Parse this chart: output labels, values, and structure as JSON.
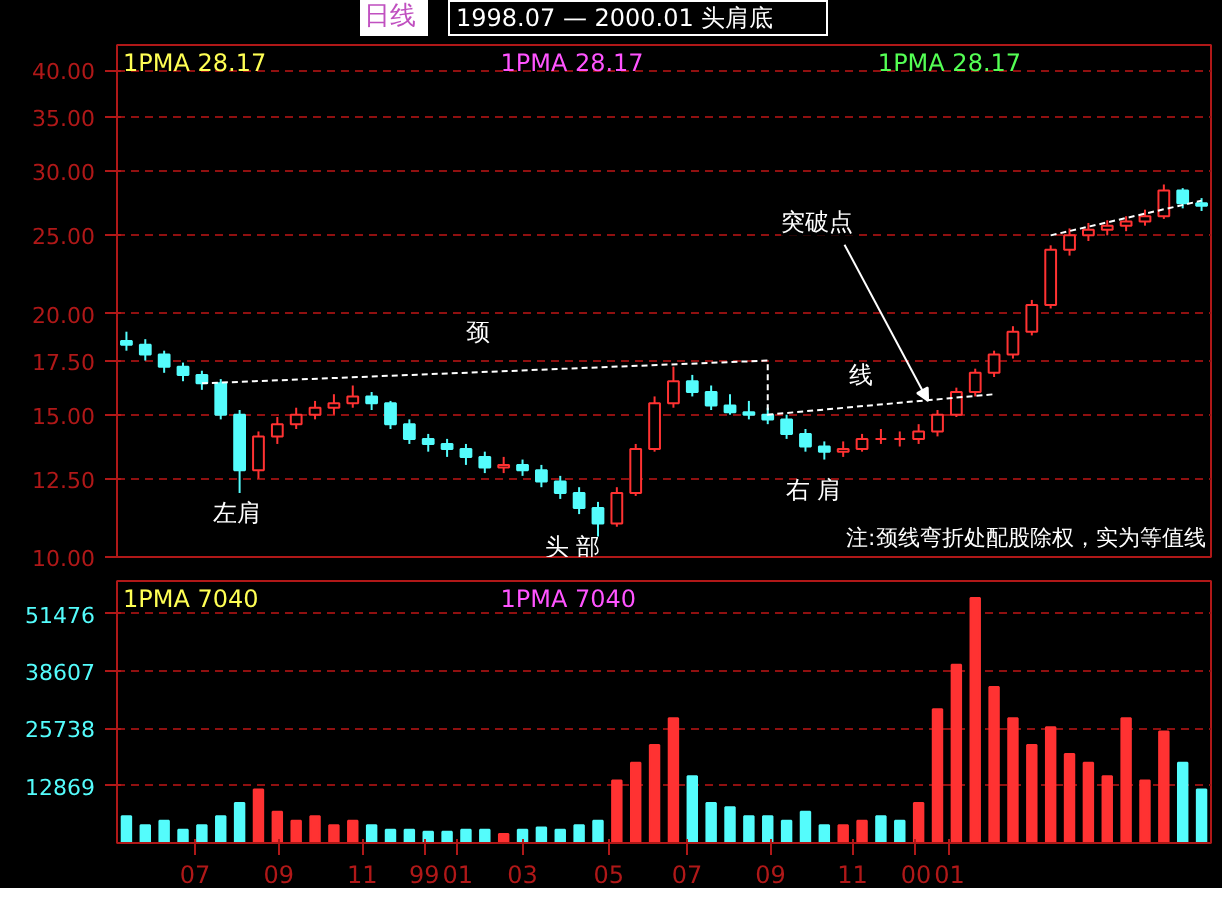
{
  "chart_data": [
    {
      "type": "candlestick",
      "title": "1998.07 — 2000.01 头肩底",
      "subtitle": "日线",
      "log": "y",
      "tick_labels": "y",
      "grid": "y",
      "x": [
        "1998-05-11",
        "1998-05-25",
        "1998-06-08",
        "1998-06-22",
        "1998-07-06",
        "1998-07-20",
        "1998-08-03",
        "1998-08-17",
        "1998-08-31",
        "1998-09-14",
        "1998-09-28",
        "1998-10-12",
        "1998-10-26",
        "1998-11-09",
        "1998-11-23",
        "1998-12-07",
        "1998-12-21",
        "1999-01-04",
        "1999-01-18",
        "1999-02-01",
        "1999-02-15",
        "1999-03-01",
        "1999-03-15",
        "1999-03-29",
        "1999-04-12",
        "1999-04-26",
        "1999-05-10",
        "1999-05-24",
        "1999-06-07",
        "1999-06-21",
        "1999-07-05",
        "1999-07-19",
        "1999-08-02",
        "1999-08-16",
        "1999-08-30",
        "1999-09-13",
        "1999-09-27",
        "1999-10-11",
        "1999-10-25",
        "1999-11-08",
        "1999-11-22",
        "1999-12-06",
        "1999-12-20",
        "2000-01-03",
        "2000-01-17",
        "2000-01-31",
        "2000-02-14",
        "2000-02-28",
        "2000-03-13",
        "2000-03-27",
        "2000-04-10",
        "2000-04-24",
        "2000-05-08",
        "2000-05-22",
        "2000-06-05",
        "2000-06-19",
        "2000-07-03",
        "2000-07-17"
      ],
      "ohlc": [
        [
          18.5,
          19.0,
          18.0,
          18.3
        ],
        [
          18.3,
          18.6,
          17.5,
          17.8
        ],
        [
          17.8,
          18.0,
          16.9,
          17.2
        ],
        [
          17.2,
          17.4,
          16.5,
          16.8
        ],
        [
          16.8,
          17.0,
          16.1,
          16.4
        ],
        [
          16.4,
          16.6,
          14.8,
          15.0
        ],
        [
          15.0,
          15.2,
          12.0,
          12.8
        ],
        [
          12.8,
          14.3,
          12.5,
          14.1
        ],
        [
          14.1,
          14.9,
          13.8,
          14.6
        ],
        [
          14.6,
          15.3,
          14.4,
          15.0
        ],
        [
          15.0,
          15.6,
          14.8,
          15.3
        ],
        [
          15.3,
          15.9,
          15.0,
          15.5
        ],
        [
          15.5,
          16.3,
          15.3,
          15.8
        ],
        [
          15.8,
          16.0,
          15.2,
          15.5
        ],
        [
          15.5,
          15.6,
          14.4,
          14.6
        ],
        [
          14.6,
          14.8,
          13.8,
          14.0
        ],
        [
          14.0,
          14.2,
          13.5,
          13.8
        ],
        [
          13.8,
          14.0,
          13.3,
          13.6
        ],
        [
          13.6,
          13.8,
          13.0,
          13.3
        ],
        [
          13.3,
          13.5,
          12.7,
          12.9
        ],
        [
          12.9,
          13.3,
          12.7,
          13.0
        ],
        [
          13.0,
          13.2,
          12.6,
          12.8
        ],
        [
          12.8,
          13.0,
          12.2,
          12.4
        ],
        [
          12.4,
          12.6,
          11.8,
          12.0
        ],
        [
          12.0,
          12.2,
          11.3,
          11.5
        ],
        [
          11.5,
          11.7,
          10.6,
          11.0
        ],
        [
          11.0,
          12.2,
          10.9,
          12.0
        ],
        [
          12.0,
          13.8,
          11.9,
          13.6
        ],
        [
          13.6,
          15.8,
          13.5,
          15.5
        ],
        [
          15.5,
          17.2,
          15.3,
          16.5
        ],
        [
          16.5,
          16.8,
          15.8,
          16.0
        ],
        [
          16.0,
          16.3,
          15.2,
          15.4
        ],
        [
          15.4,
          15.9,
          15.0,
          15.1
        ],
        [
          15.1,
          15.6,
          14.8,
          15.0
        ],
        [
          15.0,
          15.3,
          14.6,
          14.8
        ],
        [
          14.8,
          15.0,
          14.0,
          14.2
        ],
        [
          14.2,
          14.4,
          13.5,
          13.7
        ],
        [
          13.7,
          13.9,
          13.2,
          13.5
        ],
        [
          13.5,
          13.9,
          13.3,
          13.6
        ],
        [
          13.6,
          14.2,
          13.5,
          14.0
        ],
        [
          14.0,
          14.4,
          13.8,
          14.0
        ],
        [
          14.0,
          14.3,
          13.7,
          14.0
        ],
        [
          14.0,
          14.6,
          13.8,
          14.3
        ],
        [
          14.3,
          15.2,
          14.1,
          15.0
        ],
        [
          15.0,
          16.2,
          14.9,
          16.0
        ],
        [
          16.0,
          17.1,
          15.8,
          16.9
        ],
        [
          16.9,
          18.0,
          16.7,
          17.8
        ],
        [
          17.8,
          19.3,
          17.6,
          19.0
        ],
        [
          19.0,
          20.8,
          18.8,
          20.5
        ],
        [
          20.5,
          24.3,
          20.3,
          24.0
        ],
        [
          24.0,
          25.5,
          23.6,
          25.0
        ],
        [
          25.0,
          25.9,
          24.6,
          25.4
        ],
        [
          25.4,
          26.1,
          25.0,
          25.7
        ],
        [
          25.7,
          26.4,
          25.3,
          26.0
        ],
        [
          26.0,
          26.9,
          25.7,
          26.4
        ],
        [
          26.4,
          28.9,
          26.2,
          28.4
        ],
        [
          28.4,
          28.6,
          27.0,
          27.4
        ],
        [
          27.4,
          27.8,
          26.8,
          27.2
        ]
      ],
      "xlim": [
        "1998-05-04",
        "2000-07-24"
      ],
      "ylim": [
        10,
        43
      ],
      "yticks": [
        {
          "value": 10,
          "label": "10.00"
        },
        {
          "value": 12.5,
          "label": "12.50"
        },
        {
          "value": 15,
          "label": "15.00"
        },
        {
          "value": 17.5,
          "label": "17.50"
        },
        {
          "value": 20,
          "label": "20.00"
        },
        {
          "value": 25,
          "label": "25.00"
        },
        {
          "value": 30,
          "label": "30.00"
        },
        {
          "value": 35,
          "label": "35.00"
        },
        {
          "value": 40,
          "label": "40.00"
        }
      ],
      "series": [
        {
          "type": "line",
          "color": "#ffffff",
          "line_style": "dashed",
          "x": [
            "1998-07-06",
            "1999-08-30",
            "1999-08-30",
            "2000-02-14"
          ],
          "values": [
            16.4,
            17.5,
            15.0,
            15.9
          ]
        },
        {
          "type": "line",
          "color": "#ffffff",
          "line_style": "dashed",
          "x": [
            "2000-03-27",
            "2000-07-17"
          ],
          "values": [
            25.0,
            27.6
          ]
        }
      ],
      "annotations": [
        "1PMA   28.17",
        "1PMA   28.17",
        "1PMA   28.17",
        "注:颈线弯折处配股除权，实为等值线",
        "左肩",
        "头  部",
        "右  肩",
        "颈",
        "线",
        {
          "text": "突破点",
          "x": "1999-12-27",
          "y": 15.6
        }
      ]
    },
    {
      "type": "bar",
      "grid": "y",
      "x": [
        "1998-05-11",
        "1998-05-25",
        "1998-06-08",
        "1998-06-22",
        "1998-07-06",
        "1998-07-20",
        "1998-08-03",
        "1998-08-17",
        "1998-08-31",
        "1998-09-14",
        "1998-09-28",
        "1998-10-12",
        "1998-10-26",
        "1998-11-09",
        "1998-11-23",
        "1998-12-07",
        "1998-12-21",
        "1999-01-04",
        "1999-01-18",
        "1999-02-01",
        "1999-02-15",
        "1999-03-01",
        "1999-03-15",
        "1999-03-29",
        "1999-04-12",
        "1999-04-26",
        "1999-05-10",
        "1999-05-24",
        "1999-06-07",
        "1999-06-21",
        "1999-07-05",
        "1999-07-19",
        "1999-08-02",
        "1999-08-16",
        "1999-08-30",
        "1999-09-13",
        "1999-09-27",
        "1999-10-11",
        "1999-10-25",
        "1999-11-08",
        "1999-11-22",
        "1999-12-06",
        "1999-12-20",
        "2000-01-03",
        "2000-01-17",
        "2000-01-31",
        "2000-02-14",
        "2000-02-28",
        "2000-03-13",
        "2000-03-27",
        "2000-04-10",
        "2000-04-24",
        "2000-05-08",
        "2000-05-22",
        "2000-06-05",
        "2000-06-19",
        "2000-07-03",
        "2000-07-17"
      ],
      "values": [
        6000,
        4000,
        5000,
        3000,
        4000,
        6000,
        9000,
        12000,
        7000,
        5000,
        6000,
        4000,
        5000,
        4000,
        3000,
        3000,
        2500,
        2500,
        3000,
        3000,
        2000,
        3000,
        3500,
        3000,
        4000,
        5000,
        14000,
        18000,
        22000,
        28000,
        15000,
        9000,
        8000,
        6000,
        6000,
        5000,
        7000,
        4000,
        4000,
        5000,
        6000,
        5000,
        9000,
        30000,
        40000,
        55000,
        35000,
        28000,
        22000,
        26000,
        20000,
        18000,
        15000,
        28000,
        14000,
        25000,
        18000,
        12000
      ],
      "colors": [
        "#54fcfc",
        "#54fcfc",
        "#54fcfc",
        "#54fcfc",
        "#54fcfc",
        "#54fcfc",
        "#54fcfc",
        "#ff3232",
        "#ff3232",
        "#ff3232",
        "#ff3232",
        "#ff3232",
        "#ff3232",
        "#54fcfc",
        "#54fcfc",
        "#54fcfc",
        "#54fcfc",
        "#54fcfc",
        "#54fcfc",
        "#54fcfc",
        "#ff3232",
        "#54fcfc",
        "#54fcfc",
        "#54fcfc",
        "#54fcfc",
        "#54fcfc",
        "#ff3232",
        "#ff3232",
        "#ff3232",
        "#ff3232",
        "#54fcfc",
        "#54fcfc",
        "#54fcfc",
        "#54fcfc",
        "#54fcfc",
        "#54fcfc",
        "#54fcfc",
        "#54fcfc",
        "#ff3232",
        "#ff3232",
        "#54fcfc",
        "#54fcfc",
        "#ff3232",
        "#ff3232",
        "#ff3232",
        "#ff3232",
        "#ff3232",
        "#ff3232",
        "#ff3232",
        "#ff3232",
        "#ff3232",
        "#ff3232",
        "#ff3232",
        "#ff3232",
        "#ff3232",
        "#ff3232",
        "#54fcfc",
        "#54fcfc"
      ],
      "xlim": [
        "1998-05-04",
        "2000-07-24"
      ],
      "ylim": [
        0,
        58800
      ],
      "yticks": [
        12869,
        25738,
        38607,
        51476
      ],
      "xticks": [
        {
          "value": "1998-07-01",
          "label": "07"
        },
        {
          "value": "1998-09-01",
          "label": "09"
        },
        {
          "value": "1998-11-02",
          "label": "11"
        },
        {
          "value": "1998-12-18",
          "label": "99"
        },
        {
          "value": "1999-01-12",
          "label": "01"
        },
        {
          "value": "1999-03-01",
          "label": "03"
        },
        {
          "value": "1999-05-04",
          "label": "05"
        },
        {
          "value": "1999-07-01",
          "label": "07"
        },
        {
          "value": "1999-09-01",
          "label": "09"
        },
        {
          "value": "1999-11-01",
          "label": "11"
        },
        {
          "value": "1999-12-18",
          "label": "00"
        },
        {
          "value": "2000-01-12",
          "label": "01"
        }
      ],
      "annotations": [
        "1PMA   7040",
        "1PMA   7040"
      ]
    }
  ]
}
